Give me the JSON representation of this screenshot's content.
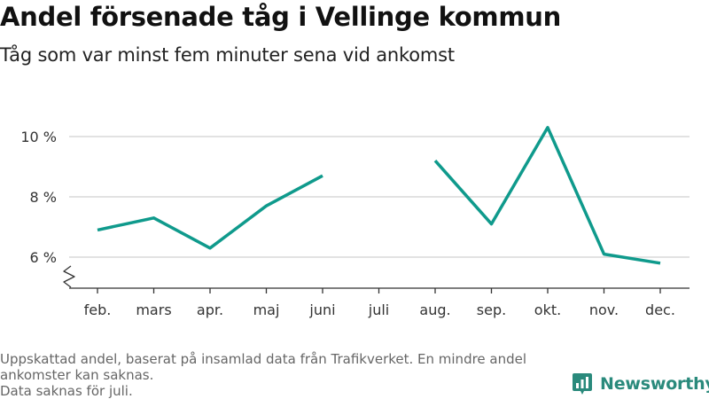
{
  "title": "Andel försenade tåg i Vellinge kommun",
  "subtitle": "Tåg som var minst fem minuter sena vid ankomst",
  "footer": {
    "line1": "Uppskattad andel, baserat på insamlad data från Trafikverket. En mindre andel",
    "line2": "ankomster kan saknas.",
    "line3": "Data saknas för juli."
  },
  "brand": {
    "name": "Newsworthy",
    "icon": "newsworthy-logo-icon",
    "color": "#2a8a7c"
  },
  "colors": {
    "line": "#0f9a8c",
    "grid": "#d9d9d9",
    "axis": "#333333"
  },
  "chart_data": {
    "type": "line",
    "categories": [
      "feb.",
      "mars",
      "apr.",
      "maj",
      "juni",
      "juli",
      "aug.",
      "sep.",
      "okt.",
      "nov.",
      "dec."
    ],
    "series": [
      {
        "values": [
          6.9,
          7.3,
          6.3,
          7.7,
          8.7,
          null,
          9.2,
          7.1,
          10.3,
          6.1,
          5.8
        ]
      }
    ],
    "y_ticks": [
      6,
      8,
      10
    ],
    "y_tick_labels": [
      "6 %",
      "8 %",
      "10 %"
    ],
    "ylim": [
      5,
      10.5
    ],
    "y_axis_break": true,
    "grid": "horizontal",
    "xlabel": "",
    "ylabel": ""
  }
}
